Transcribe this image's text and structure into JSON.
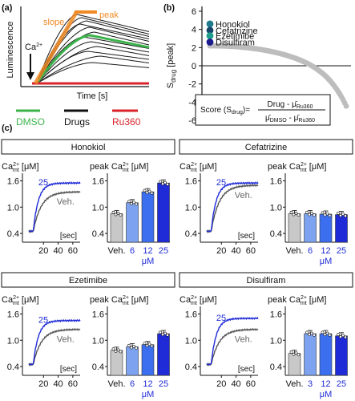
{
  "panel_letters": {
    "a": "(a)",
    "b": "(b)",
    "c": "(c)"
  },
  "panel_a": {
    "xlabel": "Time [s]",
    "ylabel": "Luminescence",
    "slope_label": "slope",
    "peak_label": "peak",
    "ca_label": "Ca",
    "ca_sup": "2+",
    "legend": [
      "DMSO",
      "Drugs",
      "Ru360"
    ],
    "colors": {
      "dmso": "#3cb44b",
      "drugs": "#1a1a1a",
      "ru360": "#d9232b",
      "annot": "#f08a24"
    }
  },
  "panel_b": {
    "ylabel_main": "S",
    "ylabel_sub": "drug",
    "ylabel_unit": " [peak]",
    "yticks": [
      "6",
      "4",
      "2",
      "0",
      "-2",
      "-4",
      "-6"
    ],
    "ylim": [
      -6,
      6
    ],
    "highlighted": [
      {
        "name": "Honokiol",
        "score": 4.6,
        "color": "#1f7a8c"
      },
      {
        "name": "Cefatrizine",
        "score": 3.9,
        "color": "#17456b"
      },
      {
        "name": "Ezetimibe",
        "score": 3.3,
        "color": "#1f9d8a"
      },
      {
        "name": "Disulfiram",
        "score": 2.6,
        "color": "#1c1c8f"
      }
    ],
    "formula": {
      "score_prefix": "Score (S",
      "score_sub": "drug",
      "score_suffix": ")=",
      "numerator": "Drug - μ̄",
      "numerator_sub": "Ru360",
      "denominator_a": "μ̄",
      "denominator_a_sub": "DMSO",
      "denominator_b": " - μ̄",
      "denominator_b_sub": "Ru360"
    }
  },
  "panel_c": {
    "trace_ylabel": "Ca",
    "trace_ylabel_sup": "2+",
    "trace_ylabel_sub": "mt",
    "trace_ylabel_unit": " [μM]",
    "peak_ylabel_prefix": "peak Ca",
    "y_ticks": [
      "1.6",
      "1.0",
      "0.4"
    ],
    "x_ticks": [
      "20",
      "40",
      "60"
    ],
    "x_unit": "[sec]",
    "dose_unit": "μM",
    "veh_label": "Veh.",
    "drug_color": "#1f2bd6",
    "veh_color": "#555555"
  },
  "chart_data": [
    {
      "type": "bar",
      "title": "Honokiol",
      "ylabel": "peak Ca2+mt [μM]",
      "categories": [
        "Veh.",
        "6",
        "12",
        "25"
      ],
      "values": [
        0.85,
        1.1,
        1.35,
        1.55
      ],
      "trace_label": "25",
      "trace_veh_label": "Veh.",
      "trace_plateau": {
        "drug": 1.55,
        "veh": 1.35
      },
      "ylim": [
        0.2,
        1.7
      ]
    },
    {
      "type": "bar",
      "title": "Cefatrizine",
      "ylabel": "peak Ca2+mt [μM]",
      "categories": [
        "Veh.",
        "6",
        "12",
        "25"
      ],
      "values": [
        0.85,
        0.85,
        0.84,
        0.83
      ],
      "trace_label": "25",
      "trace_veh_label": "Veh.",
      "trace_plateau": {
        "drug": 1.55,
        "veh": 1.5
      },
      "ylim": [
        0.2,
        1.7
      ]
    },
    {
      "type": "bar",
      "title": "Ezetimibe",
      "ylabel": "peak Ca2+mt [μM]",
      "categories": [
        "Veh.",
        "6",
        "12",
        "25"
      ],
      "values": [
        0.77,
        0.85,
        0.9,
        1.15
      ],
      "trace_label": "25",
      "trace_veh_label": "Veh.",
      "trace_plateau": {
        "drug": 1.45,
        "veh": 1.25
      },
      "ylim": [
        0.2,
        1.7
      ]
    },
    {
      "type": "bar",
      "title": "Disulfiram",
      "ylabel": "peak Ca2+mt [μM]",
      "categories": [
        "Veh.",
        "3",
        "12",
        "25"
      ],
      "values": [
        0.7,
        1.15,
        1.15,
        1.1
      ],
      "trace_label": "25",
      "trace_veh_label": "Veh.",
      "trace_plateau": {
        "drug": 1.5,
        "veh": 1.25
      },
      "ylim": [
        0.2,
        1.7
      ]
    }
  ]
}
